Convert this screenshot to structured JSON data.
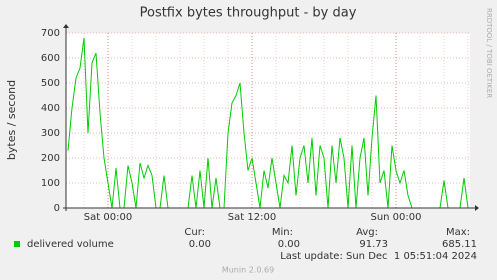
{
  "chart_data": {
    "type": "line",
    "title": "Postfix bytes throughput - by day",
    "y_label": "bytes / second",
    "side_text": "RRDTOOL / TOBI OETIKER",
    "categories": [
      null,
      null,
      null,
      null,
      null,
      null,
      null,
      null,
      null,
      null,
      "Sat 00:00",
      null,
      null,
      null,
      null,
      null,
      null,
      null,
      null,
      null,
      null,
      null,
      null,
      null,
      null,
      null,
      null,
      null,
      null,
      null,
      null,
      null,
      null,
      null,
      null,
      null,
      null,
      null,
      null,
      null,
      null,
      null,
      null,
      null,
      null,
      null,
      "Sat 12:00",
      null,
      null,
      null,
      null,
      null,
      null,
      null,
      null,
      null,
      null,
      null,
      null,
      null,
      null,
      null,
      null,
      null,
      null,
      null,
      null,
      null,
      null,
      null,
      null,
      null,
      null,
      null,
      null,
      null,
      null,
      null,
      null,
      null,
      null,
      null,
      "Sun 00:00",
      null,
      null,
      null,
      null,
      null,
      null,
      null,
      null,
      null,
      null,
      null,
      null,
      null,
      null,
      null,
      null,
      null,
      null
    ],
    "series": [
      {
        "name": "delivered volume",
        "color": "#00cc00",
        "values": [
          230,
          400,
          520,
          560,
          680,
          300,
          580,
          620,
          380,
          200,
          100,
          0,
          160,
          0,
          0,
          170,
          100,
          0,
          180,
          120,
          170,
          130,
          0,
          0,
          130,
          0,
          0,
          0,
          0,
          0,
          0,
          130,
          0,
          150,
          0,
          200,
          0,
          120,
          0,
          0,
          300,
          420,
          450,
          500,
          300,
          150,
          200,
          100,
          0,
          150,
          80,
          200,
          100,
          0,
          130,
          100,
          250,
          50,
          200,
          250,
          100,
          280,
          50,
          250,
          200,
          0,
          250,
          100,
          280,
          200,
          0,
          250,
          0,
          200,
          280,
          50,
          280,
          450,
          100,
          150,
          0,
          250,
          150,
          100,
          150,
          50,
          0,
          0,
          0,
          0,
          0,
          0,
          0,
          0,
          110,
          0,
          0,
          0,
          0,
          120,
          0
        ]
      }
    ],
    "ylim": [
      0,
      700
    ],
    "yticks": [
      0,
      100,
      200,
      300,
      400,
      500,
      600,
      700
    ],
    "grid": true,
    "legend_table": {
      "headers": [
        "Cur:",
        "Min:",
        "Avg:",
        "Max:"
      ],
      "values": [
        "0.00",
        "0.00",
        "91.73",
        "685.11"
      ]
    },
    "last_update": "Last update: Sun Dec  1 05:51:04 2024",
    "footer": "Munin 2.0.69"
  }
}
